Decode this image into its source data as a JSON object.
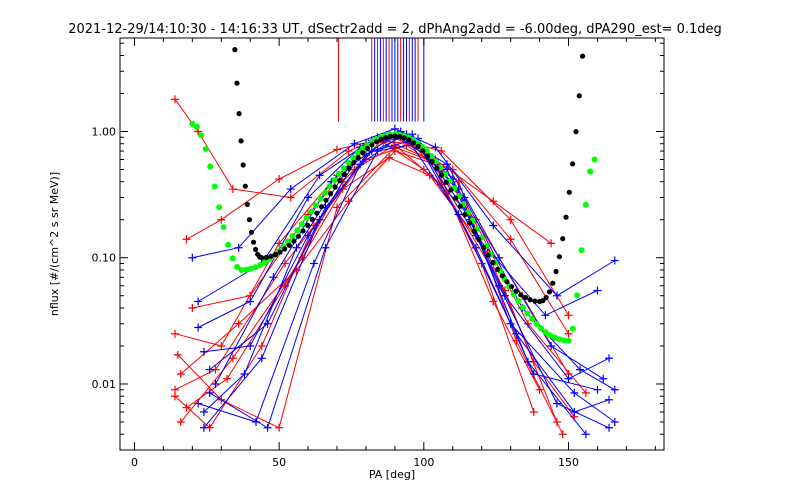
{
  "chart_data": {
    "type": "line",
    "title": "2021-12-29/14:10:30 - 14:16:33 UT, dSectr2add = 2, dPhAng2add = -6.00deg, dPA290_est=   0.1deg",
    "xlabel": "PA [deg]",
    "ylabel": "nflux [#/(cm^2 s sr MeV)]",
    "xlim": [
      -5,
      183
    ],
    "ylim": [
      0.003,
      5.5
    ],
    "y_scale": "log",
    "grid": false,
    "x_ticks": [
      {
        "value": 0,
        "label": "0"
      },
      {
        "value": 50,
        "label": "50"
      },
      {
        "value": 100,
        "label": "100"
      },
      {
        "value": 150,
        "label": "150"
      }
    ],
    "y_ticks": [
      {
        "value": 0.01,
        "label": "0.01"
      },
      {
        "value": 0.1,
        "label": "0.10"
      },
      {
        "value": 1.0,
        "label": "1.00"
      }
    ],
    "colors": {
      "red": "#ff0000",
      "blue": "#0000ff",
      "black_fit": "#000000",
      "green_fit": "#00ff00",
      "axes": "#000000"
    },
    "series": [
      {
        "color": "red",
        "values": [
          [
            14,
            0.009
          ],
          [
            28,
            0.013
          ],
          [
            52,
            0.09
          ],
          [
            72,
            0.35
          ],
          [
            88,
            0.62
          ],
          [
            102,
            0.45
          ],
          [
            122,
            0.11
          ],
          [
            138,
            0.015
          ],
          [
            152,
            0.0055
          ]
        ]
      },
      {
        "color": "red",
        "values": [
          [
            14,
            0.025
          ],
          [
            30,
            0.02
          ],
          [
            50,
            0.13
          ],
          [
            70,
            0.45
          ],
          [
            86,
            0.82
          ],
          [
            100,
            0.5
          ],
          [
            118,
            0.2
          ],
          [
            134,
            0.05
          ],
          [
            150,
            0.012
          ]
        ]
      },
      {
        "color": "red",
        "values": [
          [
            14,
            1.8
          ],
          [
            22,
            1.0
          ],
          [
            34,
            0.35
          ],
          [
            54,
            0.3
          ],
          [
            74,
            0.7
          ],
          [
            88,
            0.95
          ],
          [
            104,
            0.6
          ],
          [
            124,
            0.28
          ],
          [
            144,
            0.13
          ]
        ]
      },
      {
        "color": "red",
        "values": [
          [
            16,
            0.005
          ],
          [
            34,
            0.016
          ],
          [
            58,
            0.1
          ],
          [
            76,
            0.5
          ],
          [
            90,
            0.78
          ],
          [
            106,
            0.38
          ],
          [
            128,
            0.055
          ],
          [
            146,
            0.005
          ]
        ]
      },
      {
        "color": "red",
        "values": [
          [
            18,
            0.14
          ],
          [
            30,
            0.2
          ],
          [
            50,
            0.42
          ],
          [
            70,
            0.72
          ],
          [
            88,
            0.9
          ],
          [
            106,
            0.7
          ],
          [
            130,
            0.2
          ],
          [
            150,
            0.035
          ]
        ]
      },
      {
        "color": "red",
        "values": [
          [
            14,
            0.008
          ],
          [
            26,
            0.0045
          ],
          [
            44,
            0.02
          ],
          [
            62,
            0.18
          ],
          [
            80,
            0.6
          ],
          [
            94,
            0.78
          ],
          [
            112,
            0.4
          ],
          [
            132,
            0.022
          ],
          [
            148,
            0.004
          ]
        ]
      },
      {
        "color": "red",
        "values": [
          [
            16,
            0.012
          ],
          [
            36,
            0.03
          ],
          [
            56,
            0.08
          ],
          [
            74,
            0.28
          ],
          [
            90,
            0.7
          ],
          [
            104,
            0.55
          ],
          [
            124,
            0.045
          ],
          [
            140,
            0.009
          ]
        ]
      },
      {
        "color": "red",
        "values": [
          [
            20,
            0.04
          ],
          [
            40,
            0.05
          ],
          [
            60,
            0.22
          ],
          [
            82,
            0.85
          ],
          [
            96,
            0.8
          ],
          [
            114,
            0.28
          ],
          [
            136,
            0.03
          ],
          [
            156,
            0.0085
          ]
        ]
      },
      {
        "color": "red",
        "values": [
          [
            18,
            0.0065
          ],
          [
            32,
            0.011
          ],
          [
            52,
            0.06
          ],
          [
            72,
            0.4
          ],
          [
            86,
            0.88
          ],
          [
            102,
            0.6
          ],
          [
            120,
            0.09
          ],
          [
            138,
            0.006
          ]
        ]
      },
      {
        "color": "red",
        "values": [
          [
            15,
            0.017
          ],
          [
            30,
            0.0075
          ],
          [
            50,
            0.0045
          ],
          [
            70,
            0.25
          ],
          [
            90,
            0.75
          ],
          [
            110,
            0.5
          ],
          [
            130,
            0.14
          ],
          [
            150,
            0.025
          ]
        ]
      },
      {
        "color": "blue",
        "values": [
          [
            24,
            0.006
          ],
          [
            38,
            0.012
          ],
          [
            56,
            0.12
          ],
          [
            74,
            0.52
          ],
          [
            90,
            0.95
          ],
          [
            108,
            0.5
          ],
          [
            126,
            0.06
          ],
          [
            146,
            0.007
          ],
          [
            164,
            0.0045
          ]
        ]
      },
      {
        "color": "blue",
        "values": [
          [
            22,
            0.028
          ],
          [
            40,
            0.045
          ],
          [
            60,
            0.3
          ],
          [
            78,
            0.75
          ],
          [
            92,
            1.0
          ],
          [
            110,
            0.42
          ],
          [
            128,
            0.05
          ],
          [
            150,
            0.011
          ],
          [
            164,
            0.016
          ]
        ]
      },
      {
        "color": "blue",
        "values": [
          [
            24,
            0.0045
          ],
          [
            44,
            0.016
          ],
          [
            64,
            0.2
          ],
          [
            80,
            0.8
          ],
          [
            94,
            0.9
          ],
          [
            112,
            0.22
          ],
          [
            130,
            0.03
          ],
          [
            152,
            0.0085
          ],
          [
            166,
            0.005
          ]
        ]
      },
      {
        "color": "blue",
        "values": [
          [
            20,
            0.1
          ],
          [
            36,
            0.12
          ],
          [
            54,
            0.35
          ],
          [
            76,
            0.8
          ],
          [
            90,
            1.05
          ],
          [
            104,
            0.75
          ],
          [
            124,
            0.18
          ],
          [
            146,
            0.05
          ],
          [
            166,
            0.095
          ]
        ]
      },
      {
        "color": "blue",
        "values": [
          [
            26,
            0.013
          ],
          [
            46,
            0.03
          ],
          [
            66,
            0.25
          ],
          [
            82,
            0.7
          ],
          [
            96,
            0.85
          ],
          [
            114,
            0.3
          ],
          [
            134,
            0.04
          ],
          [
            154,
            0.013
          ],
          [
            166,
            0.009
          ]
        ]
      },
      {
        "color": "blue",
        "values": [
          [
            22,
            0.007
          ],
          [
            42,
            0.005
          ],
          [
            62,
            0.09
          ],
          [
            78,
            0.55
          ],
          [
            92,
            0.92
          ],
          [
            108,
            0.55
          ],
          [
            126,
            0.1
          ],
          [
            144,
            0.02
          ],
          [
            162,
            0.011
          ]
        ]
      },
      {
        "color": "blue",
        "values": [
          [
            24,
            0.018
          ],
          [
            40,
            0.02
          ],
          [
            60,
            0.15
          ],
          [
            80,
            0.65
          ],
          [
            94,
            0.95
          ],
          [
            112,
            0.35
          ],
          [
            132,
            0.025
          ],
          [
            152,
            0.006
          ],
          [
            164,
            0.0075
          ]
        ]
      },
      {
        "color": "blue",
        "values": [
          [
            28,
            0.01
          ],
          [
            48,
            0.07
          ],
          [
            68,
            0.4
          ],
          [
            84,
            0.9
          ],
          [
            98,
            0.88
          ],
          [
            116,
            0.2
          ],
          [
            136,
            0.015
          ],
          [
            156,
            0.004
          ]
        ]
      },
      {
        "color": "blue",
        "values": [
          [
            22,
            0.045
          ],
          [
            44,
            0.09
          ],
          [
            64,
            0.45
          ],
          [
            82,
            0.85
          ],
          [
            96,
            0.95
          ],
          [
            118,
            0.15
          ],
          [
            142,
            0.035
          ],
          [
            160,
            0.055
          ]
        ]
      },
      {
        "color": "blue",
        "values": [
          [
            26,
            0.0085
          ],
          [
            46,
            0.0045
          ],
          [
            66,
            0.12
          ],
          [
            84,
            0.7
          ],
          [
            98,
            0.8
          ],
          [
            118,
            0.12
          ],
          [
            138,
            0.012
          ],
          [
            160,
            0.009
          ]
        ]
      }
    ],
    "fit_black": {
      "x_start": 34,
      "x_end": 156,
      "min_x": 44,
      "min_y": 0.1,
      "peak_x": 90,
      "peak_y": 0.92,
      "min2_x": 140,
      "min2_y": 0.045
    },
    "fit_green": {
      "x_start": 20,
      "x_end": 159,
      "start_y": 1.15,
      "min_x": 37,
      "min_y": 0.08,
      "peak_x": 90,
      "peak_y": 0.95,
      "min2_x": 150,
      "min2_y": 0.022,
      "end_y": 0.6
    },
    "vertical_markers": {
      "y_top": 5.5,
      "y_bottom": 1.2,
      "red_x": [
        70.5,
        82,
        84,
        86,
        88,
        92,
        95,
        98
      ],
      "blue_x": [
        83,
        85,
        87,
        89,
        90,
        91,
        93,
        94,
        96,
        97,
        100
      ]
    }
  }
}
